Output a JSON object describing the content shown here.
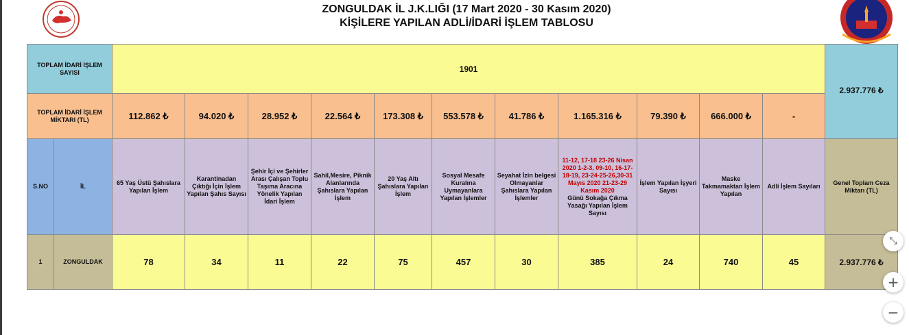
{
  "header": {
    "title_line1": "ZONGULDAK İL J.K.LIĞI (17 Mart 2020 - 30 Kasım 2020)",
    "title_line2": "KİŞİLERE YAPILAN ADLİ/İDARİ İŞLEM TABLOSU",
    "logo_left": "ministry-seal-icon",
    "logo_right": "jandarma-emblem-icon"
  },
  "summary": {
    "total_count_label": "TOPLAM İDARİ İŞLEM SAYISI",
    "total_count_value": "1901",
    "total_amount_label": "TOPLAM İDARİ İŞLEM MİKTARI (TL)",
    "amounts": [
      "112.862 ₺",
      "94.020 ₺",
      "28.952 ₺",
      "22.564 ₺",
      "173.308 ₺",
      "553.578 ₺",
      "41.786 ₺",
      "1.165.316 ₺",
      "79.390 ₺",
      "666.000 ₺",
      "-"
    ],
    "grand_total": "2.937.776 ₺"
  },
  "columns": {
    "sno": "S.NO",
    "il": "İL",
    "c1": "65 Yaş Üstü Şahıslara Yapılan İşlem",
    "c2": "Karantinadan Çıktığı İçin İşlem Yapılan Şahıs Sayısı",
    "c3": "Şehir İçi ve Şehirler Arası Çalışan Toplu Taşıma Aracına Yönelik Yapılan İdari İşlem",
    "c4": "Sahil,Mesire, Piknik Alanlarında Şahıslara Yapılan İşlem",
    "c5": "20 Yaş Altı Şahıslara Yapılan İşlem",
    "c6": "Sosyal Mesafe Kuralına Uymayanlara Yapılan İşlemler",
    "c7": "Seyahat İzin belgesi Olmayanlar Şahıslara Yapılan İşlemler",
    "c8_red": "11-12, 17-18 23-26 Nisan 2020 1-2-3, 09-10, 16-17-18-19, 23-24-25-26,30-31 Mayıs 2020 21-23-29 Kasım 2020",
    "c8_black": "Günü Sokağa Çıkma Yasağı Yapılan İşlem Sayısı",
    "c9": "İşlem Yapılan İşyeri Sayısı",
    "c10": "Maske Takmamaktan İşlem Yapılan",
    "c11": "Adli İşlem Sayıları",
    "c12": "Genel Toplam Ceza Miktarı (TL)"
  },
  "rows": [
    {
      "sno": "1",
      "il": "ZONGULDAK",
      "values": [
        "78",
        "34",
        "11",
        "22",
        "75",
        "457",
        "30",
        "385",
        "24",
        "740",
        "45"
      ],
      "total": "2.937.776 ₺"
    }
  ],
  "controls": {
    "fit_icon": "⤡",
    "zoom_in": "+",
    "zoom_out": "−"
  }
}
